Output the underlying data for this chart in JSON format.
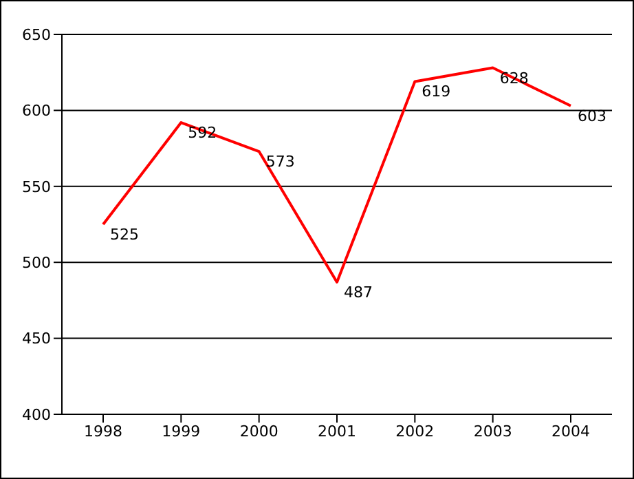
{
  "chart_data": {
    "type": "line",
    "categories": [
      "1998",
      "1999",
      "2000",
      "2001",
      "2002",
      "2003",
      "2004"
    ],
    "series": [
      {
        "color": "#ff0000",
        "values": [
          525,
          592,
          573,
          487,
          619,
          628,
          603
        ]
      }
    ],
    "ylim": [
      400,
      650
    ],
    "yticks": [
      400,
      450,
      500,
      550,
      600,
      650
    ],
    "grid": "y",
    "legend": false,
    "data_labels": true,
    "marker": "none",
    "line_style": "solid"
  }
}
